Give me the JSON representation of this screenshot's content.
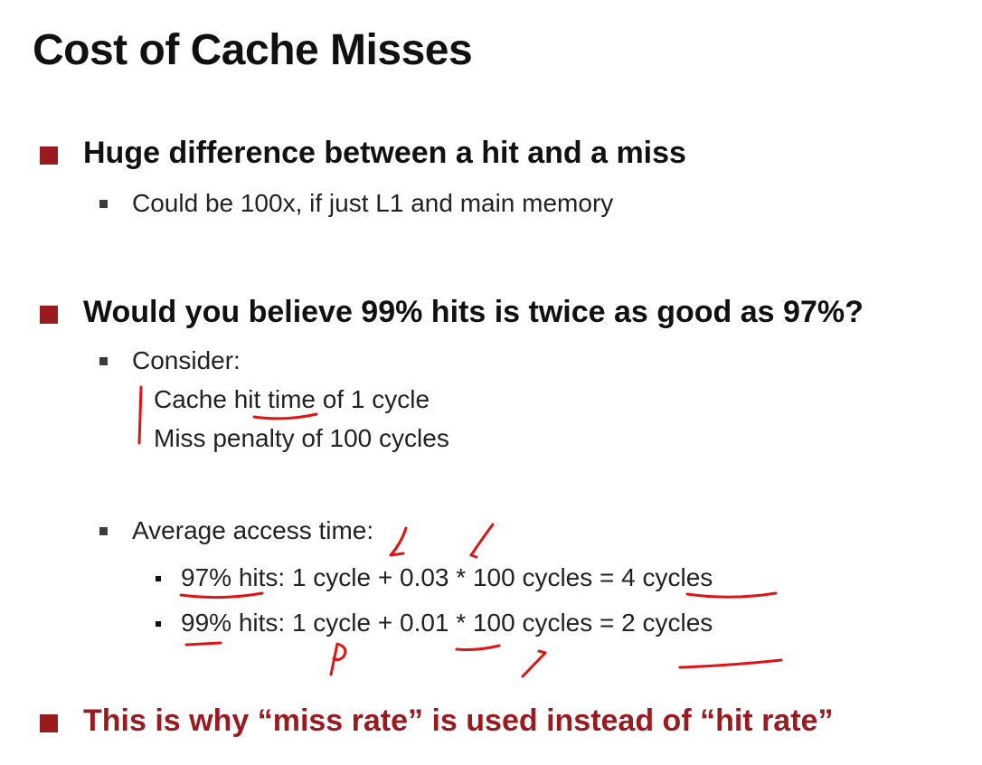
{
  "title": "Cost of Cache Misses",
  "bullets": {
    "b1": "Huge difference between a hit and a miss",
    "b1_sub1": "Could be 100x, if just L1 and main memory",
    "b2": "Would you believe 99% hits is twice as good as 97%?",
    "b2_sub1": "Consider:",
    "b2_sub1_line1": "Cache hit time of 1 cycle",
    "b2_sub1_line2": "Miss penalty of 100 cycles",
    "b2_sub2": "Average access time:",
    "b2_sub2_item1": "97% hits:  1 cycle + 0.03 * 100 cycles = 4 cycles",
    "b2_sub2_item2": "99% hits:  1 cycle + 0.01 * 100 cycles = 2 cycles",
    "b3": "This is why “miss rate” is used instead of “hit rate”"
  },
  "colors": {
    "accent": "#9a1b1f",
    "annotation": "#e01414"
  }
}
